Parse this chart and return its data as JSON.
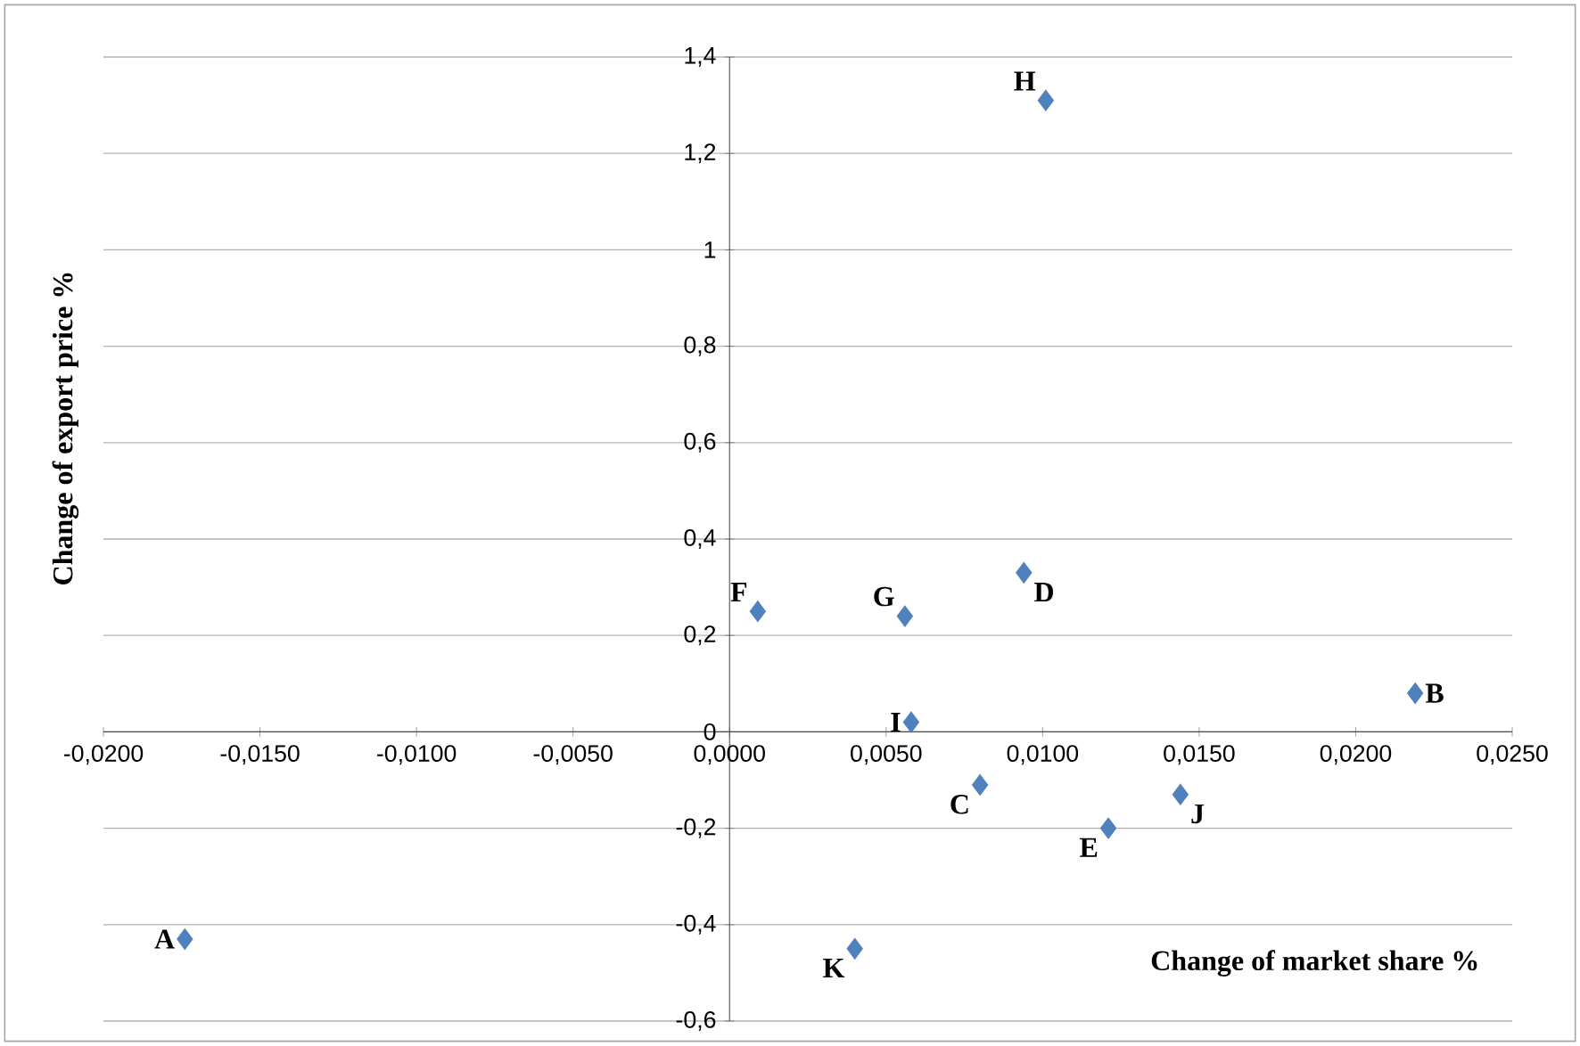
{
  "chart_data": {
    "type": "scatter",
    "xlabel": "Change of market share %",
    "ylabel": "Change of export price %",
    "x": [
      -0.0174,
      0.0219,
      0.008,
      0.0094,
      0.0121,
      0.0009,
      0.0056,
      0.0101,
      0.0058,
      0.0144,
      0.004
    ],
    "series": [
      {
        "color": "#4f81bd",
        "values": [
          -0.43,
          0.08,
          -0.11,
          0.33,
          -0.2,
          0.25,
          0.24,
          1.31,
          0.02,
          -0.13,
          -0.45
        ]
      }
    ],
    "marker": "diamond",
    "grid": "y",
    "xlim": [
      -0.02,
      0.025
    ],
    "ylim": [
      -0.6,
      1.4
    ],
    "xticks": [
      {
        "value": -0.02,
        "label": "-0,0200"
      },
      {
        "value": -0.015,
        "label": "-0,0150"
      },
      {
        "value": -0.01,
        "label": "-0,0100"
      },
      {
        "value": -0.005,
        "label": "-0,0050"
      },
      {
        "value": 0,
        "label": "0,0000"
      },
      {
        "value": 0.005,
        "label": "0,0050"
      },
      {
        "value": 0.01,
        "label": "0,0100"
      },
      {
        "value": 0.015,
        "label": "0,0150"
      },
      {
        "value": 0.02,
        "label": "0,0200"
      },
      {
        "value": 0.025,
        "label": "0,0250"
      }
    ],
    "yticks": [
      {
        "value": -0.6,
        "label": "-0,6"
      },
      {
        "value": -0.4,
        "label": "-0,4"
      },
      {
        "value": -0.2,
        "label": "-0,2"
      },
      0,
      {
        "value": 0.2,
        "label": "0,2"
      },
      {
        "value": 0.4,
        "label": "0,4"
      },
      {
        "value": 0.6,
        "label": "0,6"
      },
      {
        "value": 0.8,
        "label": "0,8"
      },
      1,
      {
        "value": 1.2,
        "label": "1,2"
      },
      {
        "value": 1.4,
        "label": "1,4"
      }
    ],
    "annotations": [
      {
        "text": "A",
        "x": -0.0174,
        "y": -0.43
      },
      {
        "text": "B",
        "x": 0.0219,
        "y": 0.08
      },
      {
        "text": "C",
        "x": 0.008,
        "y": -0.11
      },
      {
        "text": "D",
        "x": 0.0094,
        "y": 0.33
      },
      {
        "text": "E",
        "x": 0.0121,
        "y": -0.2
      },
      {
        "text": "F",
        "x": 0.0009,
        "y": 0.25
      },
      {
        "text": "G",
        "x": 0.0056,
        "y": 0.24
      },
      {
        "text": "H",
        "x": 0.0101,
        "y": 1.31
      },
      {
        "text": "I",
        "x": 0.0058,
        "y": 0.02
      },
      {
        "text": "J",
        "x": 0.0144,
        "y": -0.13
      },
      {
        "text": "K",
        "x": 0.004,
        "y": -0.45
      }
    ]
  }
}
